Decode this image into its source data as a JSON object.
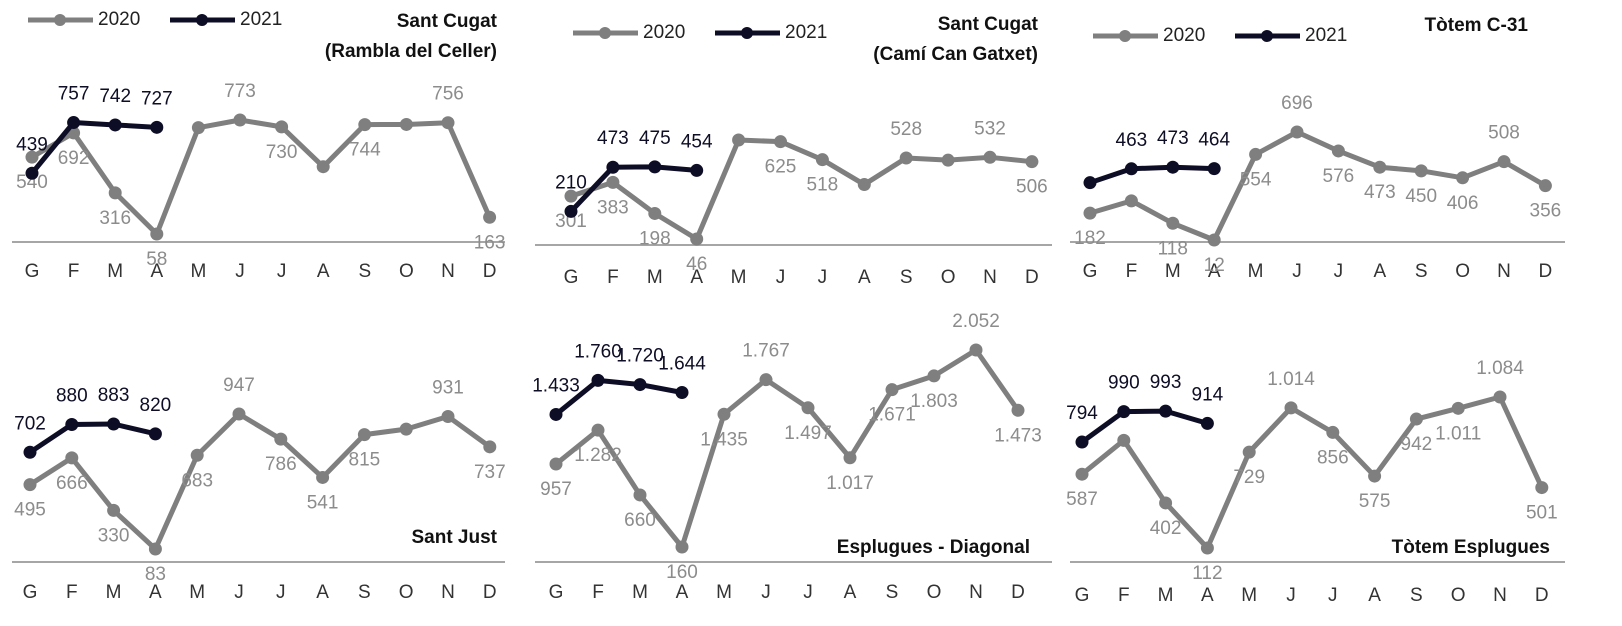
{
  "chart_data": [
    {
      "type": "line",
      "title": [
        "Sant Cugat",
        "(Rambla del Celler)"
      ],
      "title_position": "top-right",
      "legend": "top-left",
      "categories": [
        "G",
        "F",
        "M",
        "A",
        "M",
        "J",
        "J",
        "A",
        "S",
        "O",
        "N",
        "D"
      ],
      "series": [
        {
          "name": "2020",
          "color": "#7f7f7f",
          "values": [
            540,
            692,
            316,
            58,
            725,
            773,
            730,
            480,
            744,
            745,
            756,
            163
          ],
          "value_labels": [
            "540",
            "692",
            "316",
            "58",
            null,
            "773",
            "730",
            null,
            "744",
            null,
            "756",
            "163"
          ]
        },
        {
          "name": "2021",
          "color": "#0d0d26",
          "values": [
            439,
            757,
            742,
            727,
            null,
            null,
            null,
            null,
            null,
            null,
            null,
            null
          ],
          "value_labels": [
            "439",
            "757",
            "742",
            "727",
            null,
            null,
            null,
            null,
            null,
            null,
            null,
            null
          ]
        }
      ]
    },
    {
      "type": "line",
      "title": [
        "Sant Cugat",
        "(Camí Can Gatxet)"
      ],
      "title_position": "top-right",
      "legend": "top-left",
      "categories": [
        "G",
        "F",
        "M",
        "A",
        "M",
        "J",
        "J",
        "A",
        "S",
        "O",
        "N",
        "D"
      ],
      "series": [
        {
          "name": "2020",
          "color": "#7f7f7f",
          "values": [
            301,
            383,
            198,
            46,
            635,
            625,
            518,
            370,
            528,
            515,
            532,
            506
          ],
          "value_labels": [
            "301",
            "383",
            "198",
            "46",
            null,
            "625",
            "518",
            null,
            "528",
            null,
            "532",
            "506"
          ]
        },
        {
          "name": "2021",
          "color": "#0d0d26",
          "values": [
            210,
            473,
            475,
            454,
            null,
            null,
            null,
            null,
            null,
            null,
            null,
            null
          ],
          "value_labels": [
            "210",
            "473",
            "475",
            "454",
            null,
            null,
            null,
            null,
            null,
            null,
            null,
            null
          ]
        }
      ]
    },
    {
      "type": "line",
      "title": [
        "Tòtem C-31"
      ],
      "title_position": "top-right",
      "legend": "top-left",
      "categories": [
        "G",
        "F",
        "M",
        "A",
        "M",
        "J",
        "J",
        "A",
        "S",
        "O",
        "N",
        "D"
      ],
      "series": [
        {
          "name": "2020",
          "color": "#7f7f7f",
          "values": [
            182,
            260,
            118,
            12,
            554,
            696,
            576,
            473,
            450,
            406,
            508,
            356
          ],
          "value_labels": [
            "182",
            null,
            "118",
            "12",
            "554",
            "696",
            "576",
            "473",
            "450",
            "406",
            "508",
            "356"
          ]
        },
        {
          "name": "2021",
          "color": "#0d0d26",
          "values": [
            375,
            463,
            473,
            464,
            null,
            null,
            null,
            null,
            null,
            null,
            null,
            null
          ],
          "value_labels": [
            null,
            "463",
            "473",
            "464",
            null,
            null,
            null,
            null,
            null,
            null,
            null,
            null
          ]
        }
      ]
    },
    {
      "type": "line",
      "title": [
        "Sant Just"
      ],
      "title_position": "bottom-right",
      "legend": false,
      "categories": [
        "G",
        "F",
        "M",
        "A",
        "M",
        "J",
        "J",
        "A",
        "S",
        "O",
        "N",
        "D"
      ],
      "series": [
        {
          "name": "2020",
          "color": "#7f7f7f",
          "values": [
            495,
            666,
            330,
            83,
            683,
            947,
            786,
            541,
            815,
            850,
            931,
            737
          ],
          "value_labels": [
            "495",
            "666",
            "330",
            "83",
            "683",
            "947",
            "786",
            "541",
            "815",
            null,
            "931",
            "737"
          ]
        },
        {
          "name": "2021",
          "color": "#0d0d26",
          "values": [
            702,
            880,
            883,
            820,
            null,
            null,
            null,
            null,
            null,
            null,
            null,
            null
          ],
          "value_labels": [
            "702",
            "880",
            "883",
            "820",
            null,
            null,
            null,
            null,
            null,
            null,
            null,
            null
          ]
        }
      ]
    },
    {
      "type": "line",
      "title": [
        "Esplugues - Diagonal"
      ],
      "title_position": "bottom-right",
      "legend": false,
      "categories": [
        "G",
        "F",
        "M",
        "A",
        "M",
        "J",
        "J",
        "A",
        "S",
        "O",
        "N",
        "D"
      ],
      "series": [
        {
          "name": "2020",
          "color": "#7f7f7f",
          "values": [
            957,
            1282,
            660,
            160,
            1435,
            1767,
            1497,
            1017,
            1671,
            1803,
            2052,
            1473
          ],
          "value_labels": [
            "957",
            "1.282",
            "660",
            "160",
            "1.435",
            "1.767",
            "1.497",
            "1.017",
            "1.671",
            "1.803",
            "2.052",
            "1.473"
          ]
        },
        {
          "name": "2021",
          "color": "#0d0d26",
          "values": [
            1433,
            1760,
            1720,
            1644,
            null,
            null,
            null,
            null,
            null,
            null,
            null,
            null
          ],
          "value_labels": [
            "1.433",
            "1.760",
            "1.720",
            "1.644",
            null,
            null,
            null,
            null,
            null,
            null,
            null,
            null
          ]
        }
      ]
    },
    {
      "type": "line",
      "title": [
        "Tòtem Esplugues"
      ],
      "title_position": "bottom-right",
      "legend": false,
      "categories": [
        "G",
        "F",
        "M",
        "A",
        "M",
        "J",
        "J",
        "A",
        "S",
        "O",
        "N",
        "D"
      ],
      "series": [
        {
          "name": "2020",
          "color": "#7f7f7f",
          "values": [
            587,
            805,
            402,
            112,
            729,
            1014,
            856,
            575,
            942,
            1011,
            1084,
            501
          ],
          "value_labels": [
            "587",
            null,
            "402",
            "112",
            "729",
            "1.014",
            "856",
            "575",
            "942",
            "1.011",
            "1.084",
            "501"
          ]
        },
        {
          "name": "2021",
          "color": "#0d0d26",
          "values": [
            794,
            990,
            993,
            914,
            null,
            null,
            null,
            null,
            null,
            null,
            null,
            null
          ],
          "value_labels": [
            "794",
            "990",
            "993",
            "914",
            null,
            null,
            null,
            null,
            null,
            null,
            null,
            null
          ]
        }
      ]
    }
  ]
}
